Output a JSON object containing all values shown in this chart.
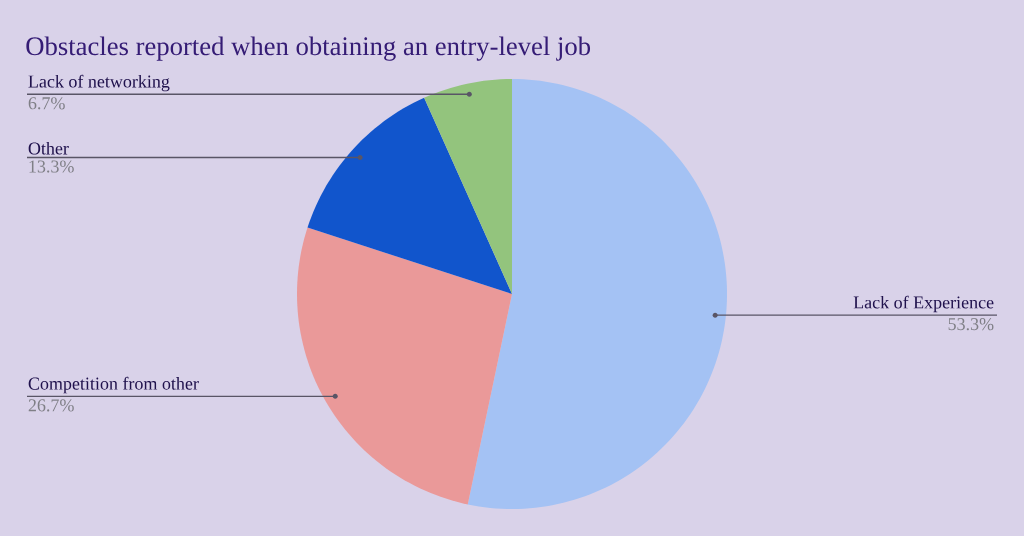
{
  "chart_data": {
    "type": "pie",
    "title": "Obstacles reported when obtaining an entry-level job",
    "categories": [
      "Lack of Experience",
      "Competition from other",
      "Other",
      "Lack of networking"
    ],
    "values": [
      53.3,
      26.7,
      13.3,
      6.7
    ],
    "colors": [
      "#a4c2f4",
      "#ea9999",
      "#1155cc",
      "#93c47d"
    ],
    "value_labels": [
      "53.3%",
      "26.7%",
      "13.3%",
      "6.7%"
    ]
  }
}
